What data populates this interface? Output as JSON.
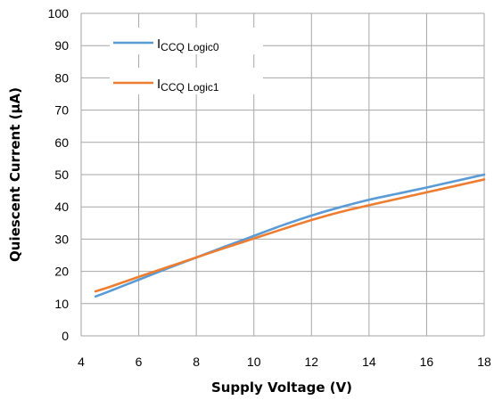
{
  "chart_data": {
    "type": "line",
    "xlabel": "Supply Voltage (V)",
    "ylabel": "Quiescent Current (µA)",
    "xlim": [
      4,
      18
    ],
    "ylim": [
      0,
      100
    ],
    "xticks": [
      4,
      6,
      8,
      10,
      12,
      14,
      16,
      18
    ],
    "yticks": [
      0,
      10,
      20,
      30,
      40,
      50,
      60,
      70,
      80,
      90,
      100
    ],
    "grid": true,
    "legend_position": "top-left",
    "series": [
      {
        "name_main": "I",
        "name_sub": "CCQ Logic0",
        "color": "#5b9bd5",
        "x": [
          4.5,
          5,
          6,
          7,
          8,
          9,
          10,
          11,
          12,
          13,
          14,
          15,
          16,
          17,
          18
        ],
        "y": [
          12.2,
          13.9,
          17.4,
          20.9,
          24.3,
          27.7,
          31.0,
          34.3,
          37.3,
          39.9,
          42.2,
          44.1,
          46.0,
          48.0,
          50.0
        ]
      },
      {
        "name_main": "I",
        "name_sub": "CCQ Logic1",
        "color": "#ed7d31",
        "x": [
          4.5,
          5,
          6,
          7,
          8,
          9,
          10,
          11,
          12,
          13,
          14,
          15,
          16,
          17,
          18
        ],
        "y": [
          13.8,
          15.2,
          18.3,
          21.3,
          24.3,
          27.3,
          30.2,
          33.1,
          35.9,
          38.4,
          40.5,
          42.5,
          44.5,
          46.5,
          48.5
        ]
      }
    ]
  }
}
